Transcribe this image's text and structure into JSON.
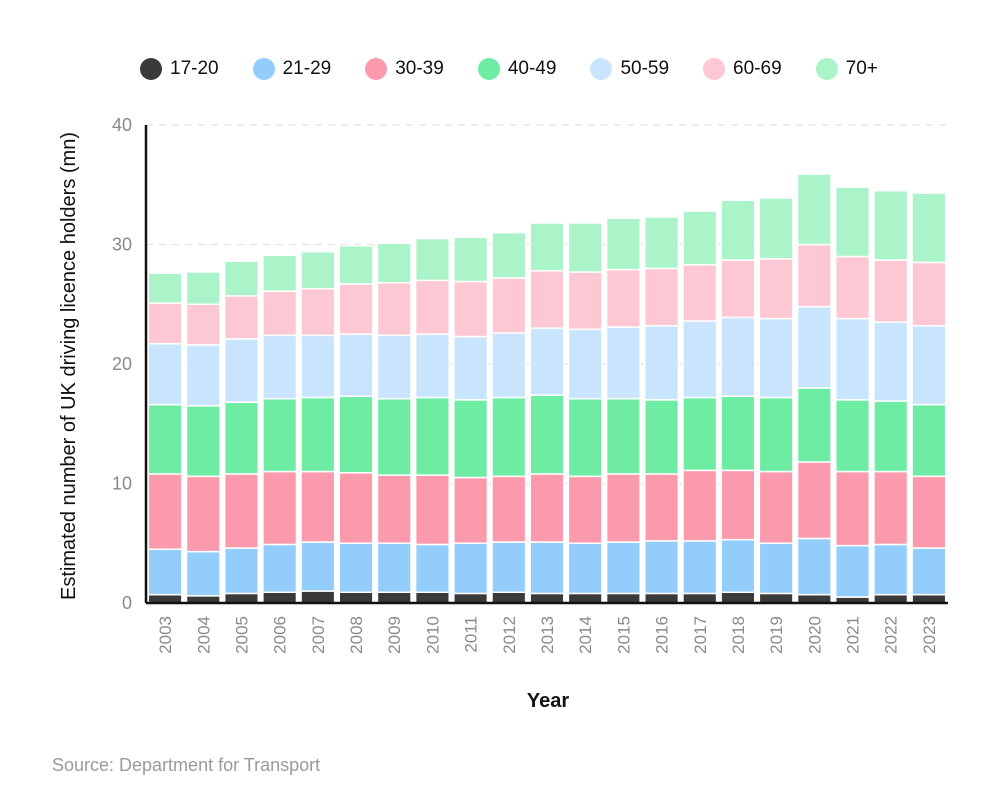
{
  "chart_data": {
    "type": "bar",
    "stacked": true,
    "title": "",
    "xlabel": "Year",
    "ylabel": "Estimated number of UK driving licence holders (mn)",
    "ylim": [
      0,
      40
    ],
    "yticks": [
      0,
      10,
      20,
      30,
      40
    ],
    "grid": true,
    "legend_position": "top",
    "categories": [
      "2003",
      "2004",
      "2005",
      "2006",
      "2007",
      "2008",
      "2009",
      "2010",
      "2011",
      "2012",
      "2013",
      "2014",
      "2015",
      "2016",
      "2017",
      "2018",
      "2019",
      "2020",
      "2021",
      "2022",
      "2023"
    ],
    "series": [
      {
        "name": "17-20",
        "color": "#3a3a3a",
        "values": [
          0.7,
          0.6,
          0.8,
          0.9,
          1.0,
          0.9,
          0.9,
          0.9,
          0.8,
          0.9,
          0.8,
          0.8,
          0.8,
          0.8,
          0.8,
          0.9,
          0.8,
          0.7,
          0.5,
          0.7,
          0.7
        ]
      },
      {
        "name": "21-29",
        "color": "#93cdfb",
        "values": [
          3.8,
          3.7,
          3.8,
          4.0,
          4.1,
          4.1,
          4.1,
          4.0,
          4.2,
          4.2,
          4.3,
          4.2,
          4.3,
          4.4,
          4.4,
          4.4,
          4.2,
          4.7,
          4.3,
          4.2,
          3.9
        ]
      },
      {
        "name": "30-39",
        "color": "#fb9aad",
        "values": [
          6.3,
          6.3,
          6.2,
          6.1,
          5.9,
          5.9,
          5.7,
          5.8,
          5.5,
          5.5,
          5.7,
          5.6,
          5.7,
          5.6,
          5.9,
          5.8,
          6.0,
          6.4,
          6.2,
          6.1,
          6.0
        ]
      },
      {
        "name": "40-49",
        "color": "#6eeca3",
        "values": [
          5.8,
          5.9,
          6.0,
          6.1,
          6.2,
          6.4,
          6.4,
          6.5,
          6.5,
          6.6,
          6.6,
          6.5,
          6.3,
          6.2,
          6.1,
          6.2,
          6.2,
          6.2,
          6.0,
          5.9,
          6.0
        ]
      },
      {
        "name": "50-59",
        "color": "#c9e4fd",
        "values": [
          5.1,
          5.1,
          5.3,
          5.3,
          5.2,
          5.2,
          5.3,
          5.3,
          5.3,
          5.4,
          5.6,
          5.8,
          6.0,
          6.2,
          6.4,
          6.6,
          6.6,
          6.8,
          6.8,
          6.6,
          6.6
        ]
      },
      {
        "name": "60-69",
        "color": "#fdc8d3",
        "values": [
          3.4,
          3.4,
          3.6,
          3.7,
          3.9,
          4.2,
          4.4,
          4.5,
          4.6,
          4.6,
          4.8,
          4.8,
          4.8,
          4.8,
          4.7,
          4.8,
          5.0,
          5.2,
          5.2,
          5.2,
          5.3
        ]
      },
      {
        "name": "70+",
        "color": "#abf3c8",
        "values": [
          2.5,
          2.7,
          2.9,
          3.0,
          3.1,
          3.2,
          3.3,
          3.5,
          3.7,
          3.8,
          4.0,
          4.1,
          4.3,
          4.3,
          4.5,
          5.0,
          5.1,
          5.9,
          5.8,
          5.8,
          5.8
        ]
      }
    ]
  },
  "source": "Source: Department for Transport"
}
